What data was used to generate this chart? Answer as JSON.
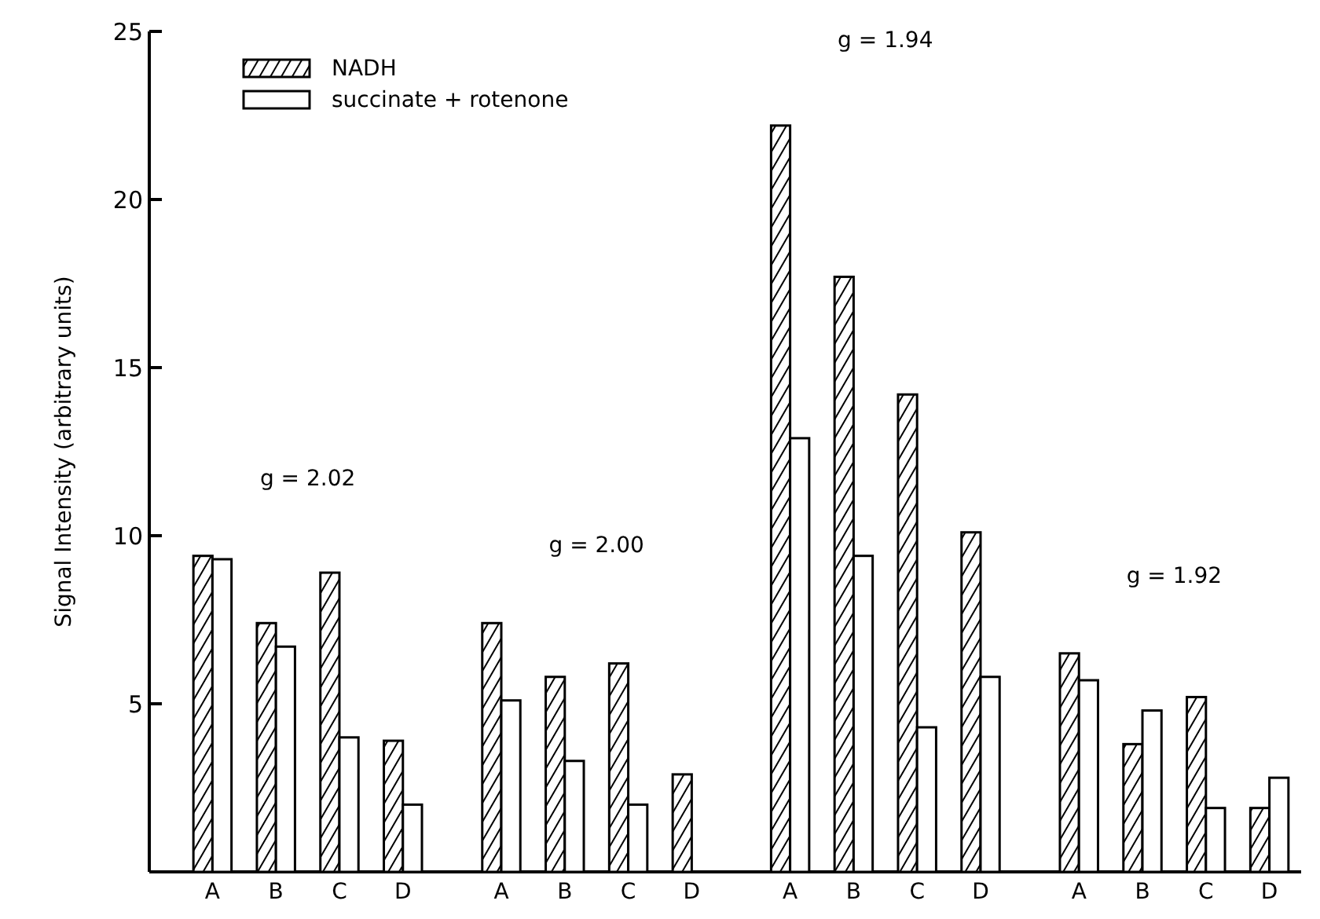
{
  "chart_data": {
    "type": "bar",
    "ylabel": "Signal Intensity (arbitrary units)",
    "categories": [
      "A",
      "B",
      "C",
      "D",
      "A",
      "B",
      "C",
      "D",
      "A",
      "B",
      "C",
      "D",
      "A",
      "B",
      "C",
      "D"
    ],
    "series": [
      {
        "name": "NADH",
        "color": "#000000",
        "values": [
          9.4,
          7.4,
          8.9,
          3.9,
          7.4,
          5.8,
          6.2,
          2.9,
          22.2,
          17.7,
          14.2,
          10.1,
          6.5,
          3.8,
          5.2,
          1.9
        ]
      },
      {
        "name": "succinate + rotenone",
        "color": "#ffffff",
        "values": [
          9.3,
          6.7,
          4.0,
          2.0,
          5.1,
          3.3,
          2.0,
          0,
          12.9,
          9.4,
          4.3,
          5.8,
          5.7,
          4.8,
          1.9,
          2.8
        ]
      }
    ],
    "annotations": [
      "g = 2.02",
      "g = 2.00",
      "g = 1.94",
      "g = 1.92"
    ],
    "ylim": [
      0,
      25
    ],
    "yticks": [
      5,
      10,
      15,
      20,
      25
    ],
    "grid": false,
    "legend": "top left"
  }
}
